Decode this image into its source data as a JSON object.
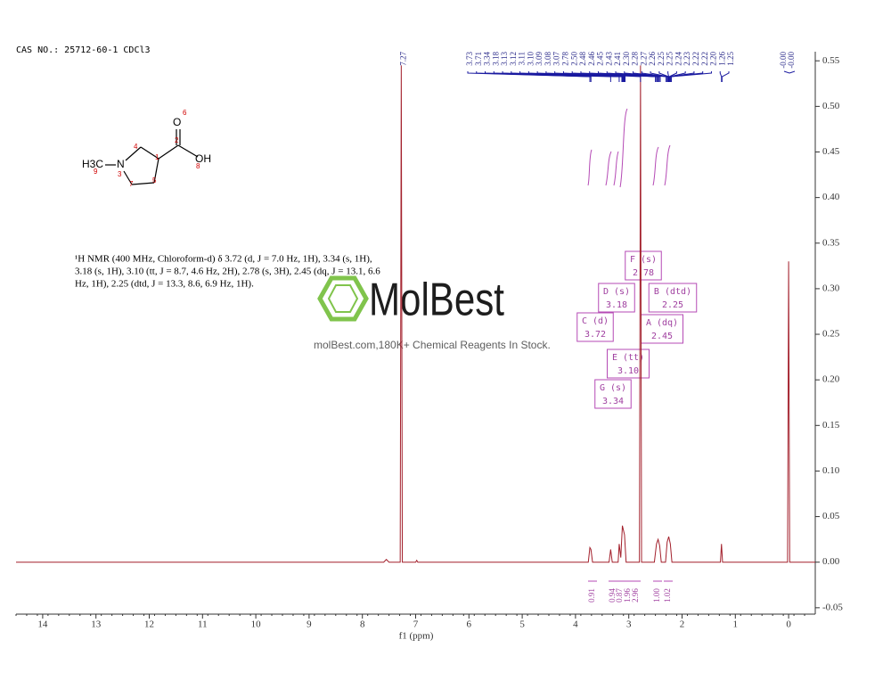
{
  "chart_data": {
    "type": "line",
    "sample": "CAS NO.: 25712-60-1 CDCl3",
    "xlabel": "f1 (ppm)",
    "xlim": [
      14.5,
      -0.5
    ],
    "xticks": [
      14,
      13,
      12,
      11,
      10,
      9,
      8,
      7,
      6,
      5,
      4,
      3,
      2,
      1,
      0
    ],
    "ylim": [
      -0.057,
      0.56
    ],
    "yticks": [
      {
        "value": -0.05,
        "label": "-0.05"
      },
      {
        "value": 0,
        "label": "0.00"
      },
      0.05,
      {
        "value": 0.1,
        "label": "0.10"
      },
      0.15,
      {
        "value": 0.2,
        "label": "0.20"
      },
      0.25,
      {
        "value": 0.3,
        "label": "0.30"
      },
      0.35,
      {
        "value": 0.4,
        "label": "0.40"
      },
      0.45,
      {
        "value": 0.5,
        "label": "0.50"
      },
      0.55
    ],
    "color": "#a3202c",
    "x": [
      14.5,
      7.6,
      7.55,
      7.5,
      7.29,
      7.27,
      7.25,
      7.0,
      6.98,
      6.96,
      3.76,
      3.73,
      3.71,
      3.68,
      3.37,
      3.34,
      3.31,
      3.2,
      3.18,
      3.15,
      3.12,
      3.1,
      3.08,
      3.05,
      2.8,
      2.78,
      2.76,
      2.52,
      2.48,
      2.45,
      2.42,
      2.39,
      2.31,
      2.28,
      2.25,
      2.22,
      2.19,
      1.28,
      1.26,
      1.24,
      0.02,
      0,
      -0.02,
      -0.5
    ],
    "values": [
      0,
      0,
      0.003,
      0,
      0,
      0.545,
      0,
      0,
      0.002,
      0,
      0,
      0.016,
      0.014,
      0,
      0,
      0.014,
      0,
      0,
      0.02,
      0.005,
      0.04,
      0.035,
      0.03,
      0,
      0,
      0.545,
      0,
      0,
      0.02,
      0.025,
      0.018,
      0,
      0,
      0.022,
      0.028,
      0.02,
      0,
      0,
      0.02,
      0,
      0,
      0.33,
      0,
      0
    ],
    "peak_labels": [
      "3.73",
      "3.71",
      "3.34",
      "3.18",
      "3.13",
      "3.12",
      "3.11",
      "3.10",
      "3.09",
      "3.08",
      "3.07",
      "2.78",
      "2.50",
      "2.48",
      "2.46",
      "2.45",
      "2.43",
      "2.41",
      "2.30",
      "2.28",
      "2.27",
      "2.26",
      "2.25",
      "2.25",
      "2.24",
      "2.23",
      "2.22",
      "2.22",
      "2.20",
      "1.26",
      "1.25"
    ],
    "solvent_label": "7.27",
    "tms_labels": [
      "-0.00",
      "-0.00"
    ],
    "multiplets": [
      {
        "label": "F (s)",
        "shift": "2.78"
      },
      {
        "label": "D (s)",
        "shift": "3.18"
      },
      {
        "label": "B (dtd)",
        "shift": "2.25"
      },
      {
        "label": "C (d)",
        "shift": "3.72"
      },
      {
        "label": "A (dq)",
        "shift": "2.45"
      },
      {
        "label": "E (tt)",
        "shift": "3.10"
      },
      {
        "label": "G (s)",
        "shift": "3.34"
      }
    ],
    "integrals": [
      "0.91",
      "0.94",
      "0.87",
      "1.96",
      "2.96",
      "1.00",
      "1.02"
    ]
  },
  "structure": {
    "methyl": "H3C",
    "nitrogen": "N",
    "oxygen": "O",
    "hydroxyl": "OH",
    "numbers": [
      "1",
      "2",
      "3",
      "4",
      "5",
      "6",
      "7",
      "8",
      "9"
    ]
  },
  "nmr_text": [
    "¹H NMR (400 MHz, Chloroform-d) δ 3.72 (d, J = 7.0 Hz, 1H), 3.34 (s, 1H),",
    "3.18 (s, 1H), 3.10 (tt, J = 8.7, 4.6 Hz, 2H), 2.78 (s, 3H), 2.45 (dq, J = 13.1, 6.6",
    "Hz, 1H), 2.25 (dtd, J = 13.3, 8.6, 6.9 Hz, 1H).",
    ""
  ],
  "watermark": {
    "logo": "MolBest",
    "tagline": "molBest.com,180K+ Chemical Reagents In Stock."
  }
}
